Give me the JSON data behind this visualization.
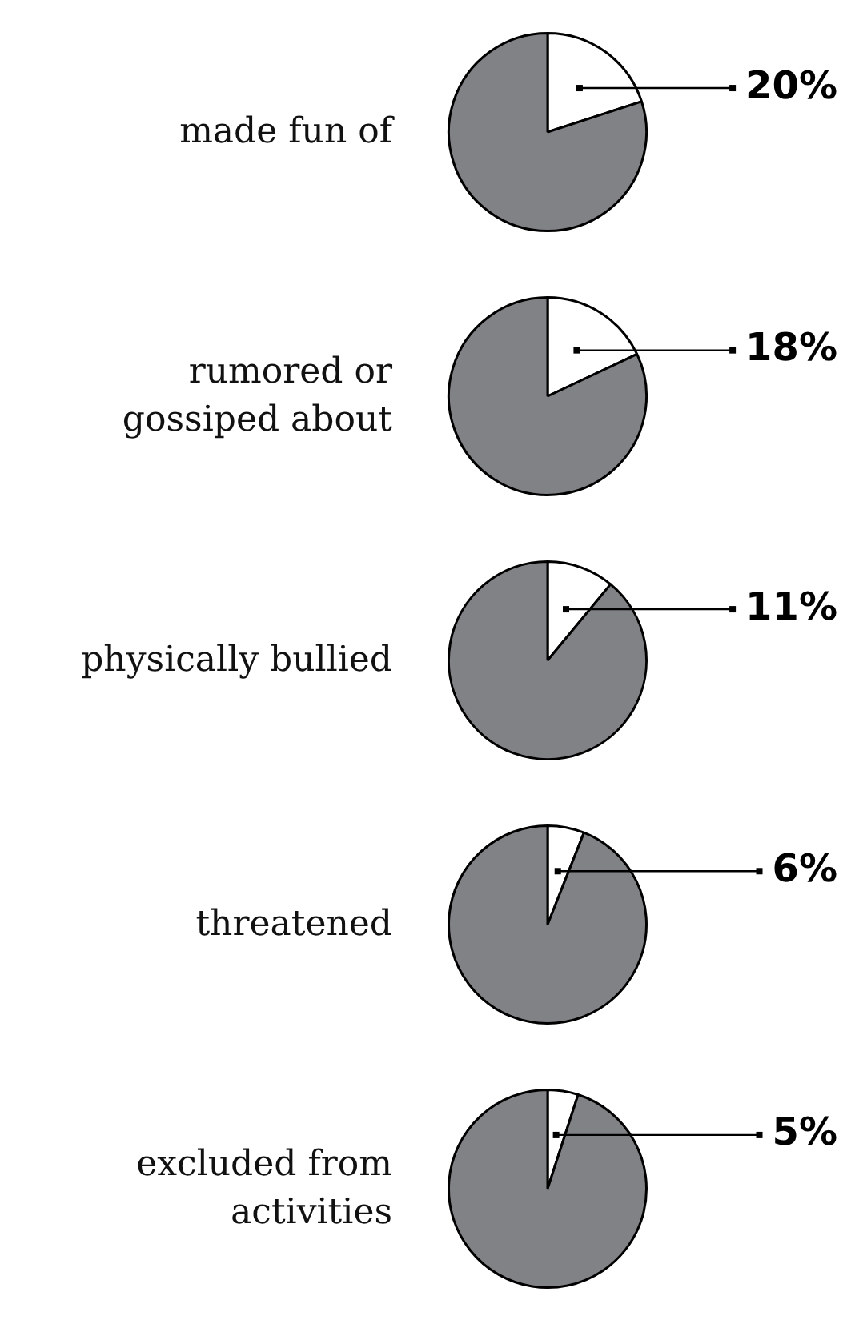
{
  "chart_data": [
    {
      "type": "pie",
      "title": "made fun of",
      "categories": [
        null,
        null
      ],
      "values": [
        20,
        80
      ],
      "colors": [
        "#ffffff",
        "#808285"
      ],
      "value_labels": [
        "20%",
        null
      ],
      "legend": false
    },
    {
      "type": "pie",
      "title": "rumored or gossiped about",
      "categories": [
        null,
        null
      ],
      "values": [
        18,
        82
      ],
      "colors": [
        "#ffffff",
        "#808285"
      ],
      "value_labels": [
        "18%",
        null
      ],
      "legend": false
    },
    {
      "type": "pie",
      "title": "physically bullied",
      "categories": [
        null,
        null
      ],
      "values": [
        11,
        89
      ],
      "colors": [
        "#ffffff",
        "#808285"
      ],
      "value_labels": [
        "11%",
        null
      ],
      "legend": false
    },
    {
      "type": "pie",
      "title": "threatened",
      "categories": [
        null,
        null
      ],
      "values": [
        6,
        94
      ],
      "colors": [
        "#ffffff",
        "#808285"
      ],
      "value_labels": [
        "6%",
        null
      ],
      "legend": false
    },
    {
      "type": "pie",
      "title": "excluded from activities",
      "categories": [
        null,
        null
      ],
      "values": [
        5,
        95
      ],
      "colors": [
        "#ffffff",
        "#808285"
      ],
      "value_labels": [
        "5%",
        null
      ],
      "legend": false
    }
  ]
}
